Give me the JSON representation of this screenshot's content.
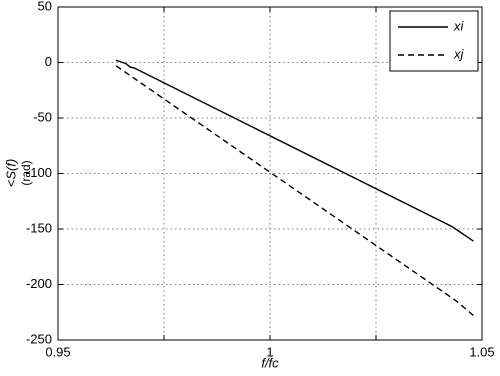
{
  "chart_data": {
    "type": "line",
    "xlabel": "f/fc",
    "ylabel": [
      "<S(f)",
      "(rad)"
    ],
    "series": [
      {
        "name": "xi",
        "color": "#000000",
        "dash": "solid",
        "x": [
          0.9637,
          0.966,
          0.967,
          0.968,
          1.043,
          1.048
        ],
        "values": [
          2,
          -1,
          -4,
          -5,
          -148,
          -161
        ]
      },
      {
        "name": "xj",
        "color": "#000000",
        "dash": "dashed",
        "x": [
          0.9637,
          1.044,
          1.048
        ],
        "values": [
          -3,
          -215,
          -228
        ]
      }
    ],
    "xlim": [
      0.95,
      1.05
    ],
    "xticks": [
      0.95,
      {
        "value": 0.975,
        "label": null
      },
      1,
      {
        "value": 1.025,
        "label": null
      },
      1.05
    ],
    "ylim": [
      -250,
      50
    ],
    "yticks": [
      -250,
      -200,
      -150,
      -100,
      -50,
      0,
      50
    ],
    "grid": true,
    "legend": "top-right"
  }
}
